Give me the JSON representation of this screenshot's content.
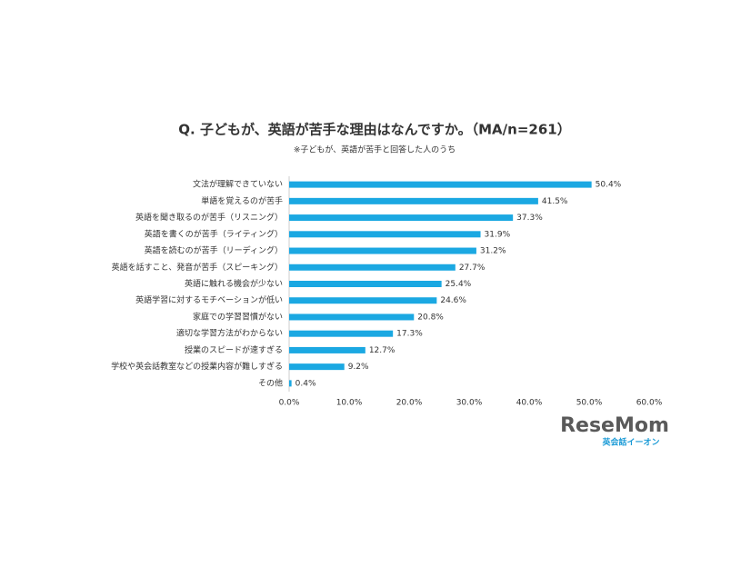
{
  "chart_data": {
    "type": "barh",
    "title": "Q. 子どもが、英語が苦手な理由はなんですか。（MA/n=261）",
    "subtitle": "※子どもが、英語が苦手と回答した人のうち",
    "categories": [
      "文法が理解できていない",
      "単語を覚えるのが苦手",
      "英語を聞き取るのが苦手（リスニング）",
      "英語を書くのが苦手（ライティング）",
      "英語を読むのが苦手（リーディング）",
      "英語を話すこと、発音が苦手（スピーキング）",
      "英語に触れる機会が少ない",
      "英語学習に対するモチベーションが低い",
      "家庭での学習習慣がない",
      "適切な学習方法がわからない",
      "授業のスピードが速すぎる",
      "学校や英会話教室などの授業内容が難しすぎる",
      "その他"
    ],
    "values": [
      50.4,
      41.5,
      37.3,
      31.9,
      31.2,
      27.7,
      25.4,
      24.6,
      20.8,
      17.3,
      12.7,
      9.2,
      0.4
    ],
    "value_labels": [
      "50.4%",
      "41.5%",
      "37.3%",
      "31.9%",
      "31.2%",
      "27.7%",
      "25.4%",
      "24.6%",
      "20.8%",
      "17.3%",
      "12.7%",
      "9.2%",
      "0.4%"
    ],
    "color": "#1ba8e2",
    "xlim": [
      0,
      60
    ],
    "xticks": [
      {
        "value": 0,
        "label": "0.0%"
      },
      {
        "value": 10,
        "label": "10.0%"
      },
      {
        "value": 20,
        "label": "20.0%"
      },
      {
        "value": 30,
        "label": "30.0%"
      },
      {
        "value": 40,
        "label": "40.0%"
      },
      {
        "value": 50,
        "label": "50.0%"
      },
      {
        "value": 60,
        "label": "60.0%"
      }
    ],
    "grid": false
  },
  "logo": {
    "text": "ReseMom",
    "sub": "英会話イーオン"
  }
}
